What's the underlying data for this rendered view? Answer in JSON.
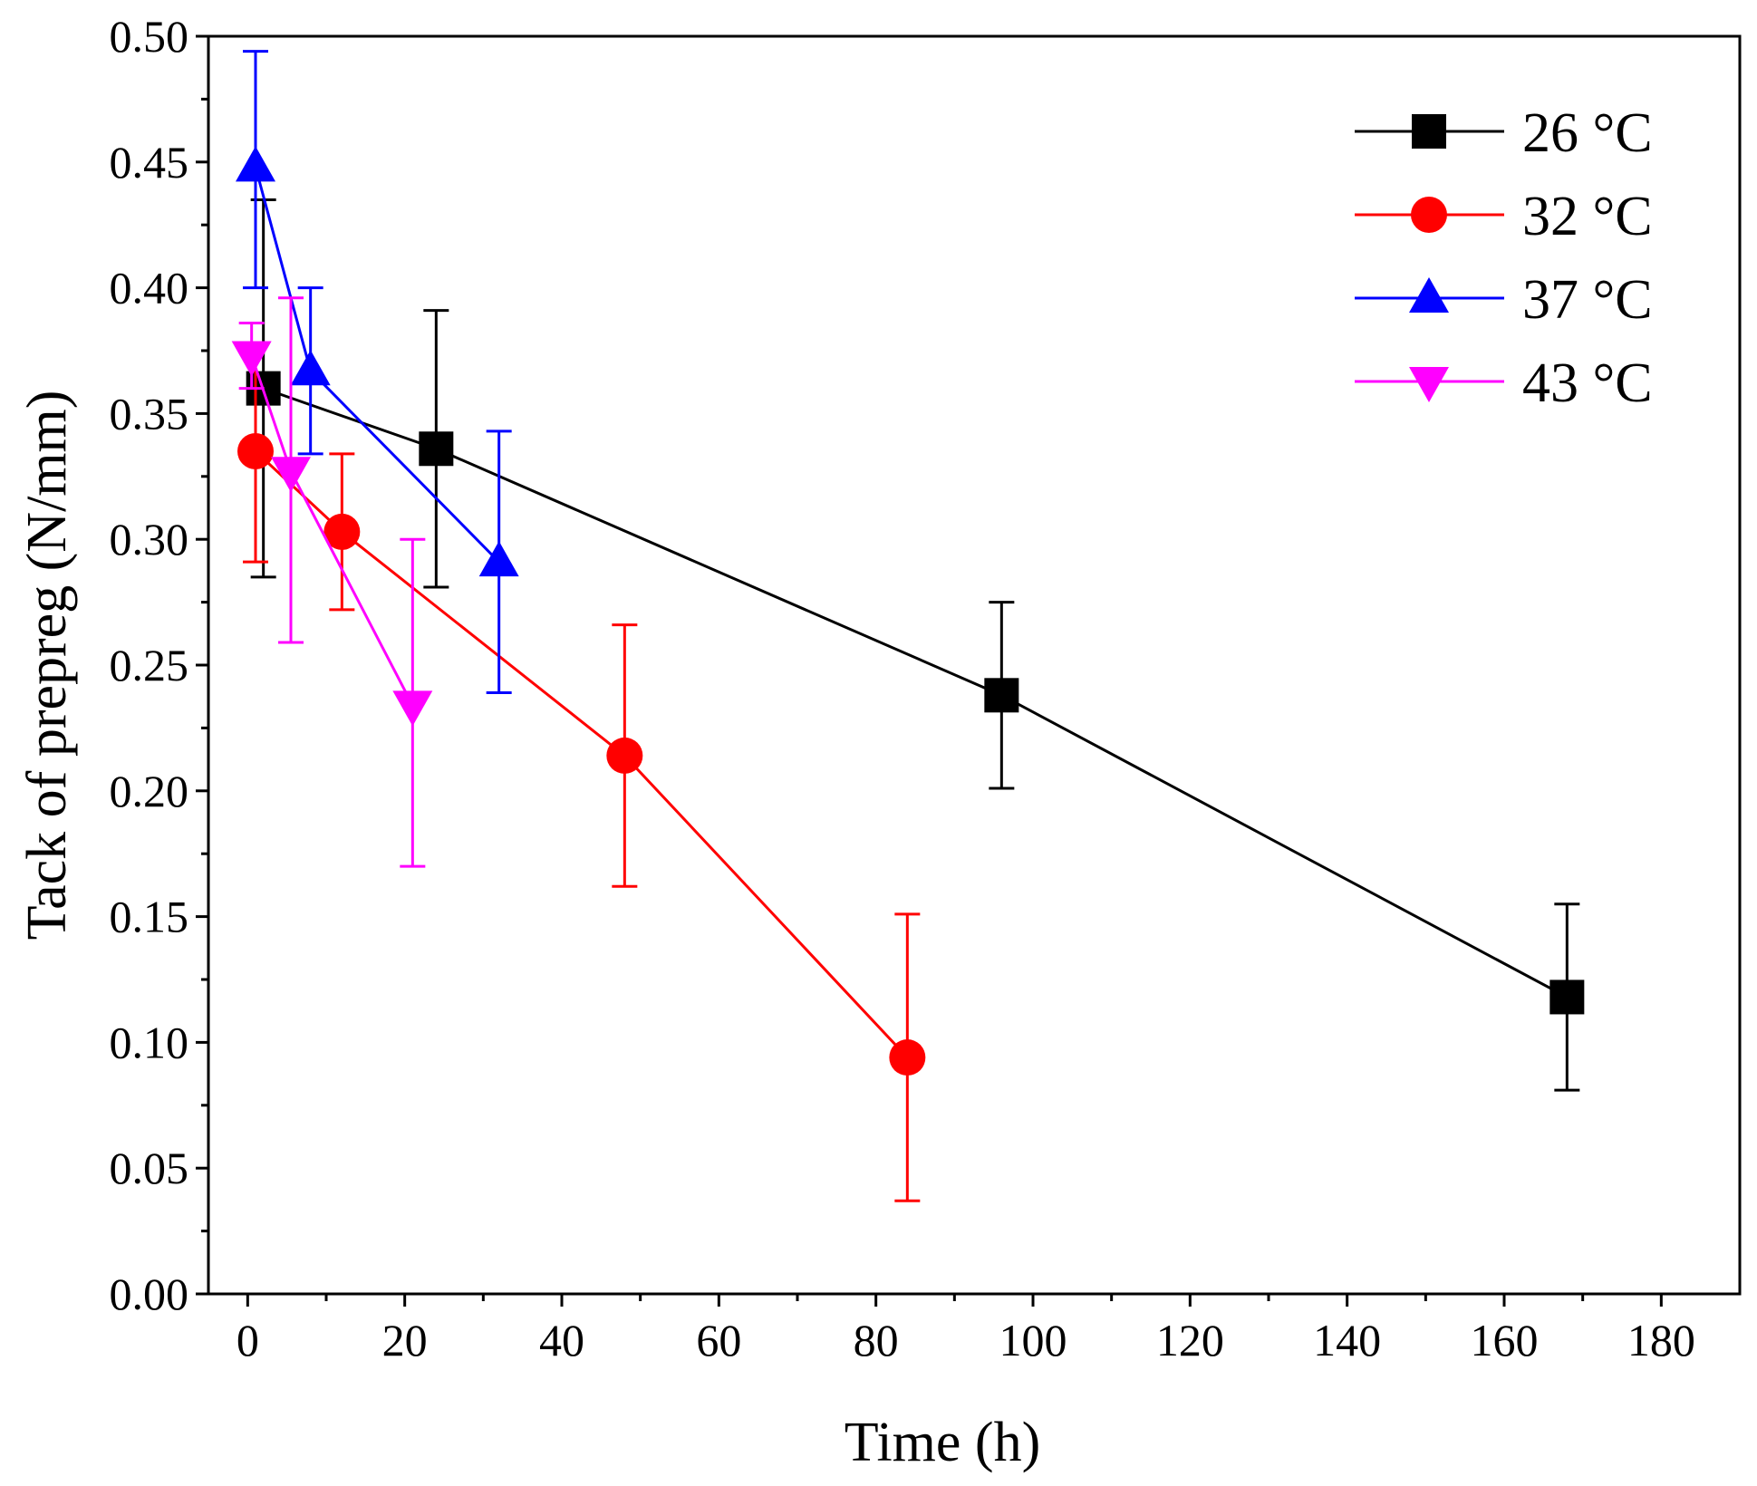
{
  "chart_data": {
    "type": "line",
    "xlabel": "Time (h)",
    "ylabel": "Tack of prepreg (N/mm)",
    "xlim": [
      -5,
      190
    ],
    "ylim": [
      0,
      0.5
    ],
    "x_ticks": [
      0,
      20,
      40,
      60,
      80,
      100,
      120,
      140,
      160,
      180
    ],
    "x_tick_labels": [
      "0",
      "20",
      "40",
      "60",
      "80",
      "100",
      "120",
      "140",
      "160",
      "180"
    ],
    "y_ticks": [
      0,
      0.05,
      0.1,
      0.15,
      0.2,
      0.25,
      0.3,
      0.35,
      0.4,
      0.45,
      0.5
    ],
    "y_tick_labels": [
      "0.00",
      "0.05",
      "0.10",
      "0.15",
      "0.20",
      "0.25",
      "0.30",
      "0.35",
      "0.40",
      "0.45",
      "0.50"
    ],
    "grid": false,
    "legend_position": "top-right",
    "series": [
      {
        "name": "26 °C",
        "color": "#000000",
        "marker": "square",
        "x": [
          2,
          24,
          96,
          168
        ],
        "y": [
          0.36,
          0.336,
          0.238,
          0.118
        ],
        "err_low": [
          0.285,
          0.281,
          0.201,
          0.081
        ],
        "err_high": [
          0.435,
          0.391,
          0.275,
          0.155
        ]
      },
      {
        "name": "32 °C",
        "color": "#ff0000",
        "marker": "circle",
        "x": [
          1,
          12,
          48,
          84
        ],
        "y": [
          0.335,
          0.303,
          0.214,
          0.094
        ],
        "err_low": [
          0.291,
          0.272,
          0.162,
          0.037
        ],
        "err_high": [
          0.378,
          0.334,
          0.266,
          0.151
        ]
      },
      {
        "name": "37 °C",
        "color": "#0000ff",
        "marker": "triangle-up",
        "x": [
          1,
          8,
          32
        ],
        "y": [
          0.448,
          0.367,
          0.291
        ],
        "err_low": [
          0.4,
          0.334,
          0.239
        ],
        "err_high": [
          0.494,
          0.4,
          0.343
        ]
      },
      {
        "name": "43 °C",
        "color": "#ff00ff",
        "marker": "triangle-down",
        "x": [
          0.5,
          5.5,
          21
        ],
        "y": [
          0.373,
          0.327,
          0.234
        ],
        "err_low": [
          0.36,
          0.259,
          0.17
        ],
        "err_high": [
          0.386,
          0.396,
          0.3
        ]
      }
    ]
  }
}
